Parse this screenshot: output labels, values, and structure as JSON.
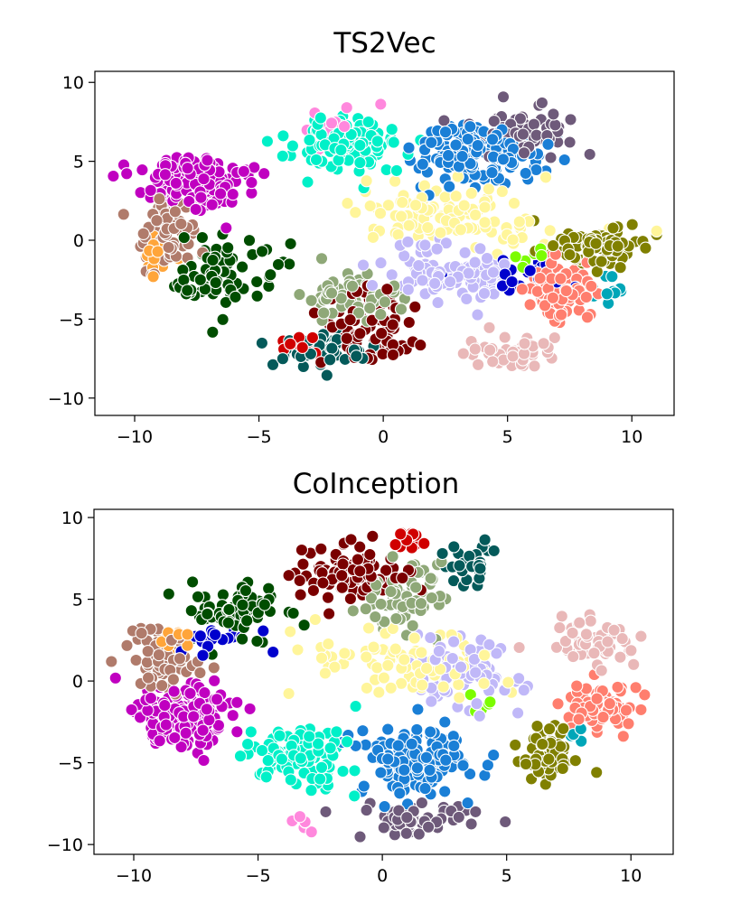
{
  "chart_data": [
    {
      "type": "scatter",
      "title": "TS2Vec",
      "xlabel": "",
      "ylabel": "",
      "xlim": [
        -11.6,
        11.7
      ],
      "ylim": [
        -11.1,
        10.7
      ],
      "xticks": [
        -10,
        -5,
        0,
        5,
        10
      ],
      "yticks": [
        -10,
        -5,
        0,
        5,
        10
      ],
      "xtick_labels": [
        "−10",
        "−5",
        "0",
        "5",
        "10"
      ],
      "ytick_labels": [
        "−10",
        "−5",
        "0",
        "5",
        "10"
      ],
      "grid": false,
      "clusters": [
        {
          "color": "#c000c0",
          "center": [
            -7.6,
            3.6
          ],
          "spread": [
            1.6,
            1.3
          ],
          "n": 170
        },
        {
          "color": "#1a7fd6",
          "center": [
            3.6,
            5.6
          ],
          "spread": [
            2.0,
            1.6
          ],
          "n": 160
        },
        {
          "color": "#00f0c8",
          "center": [
            -1.6,
            6.2
          ],
          "spread": [
            2.0,
            1.4
          ],
          "n": 110
        },
        {
          "color": "#6e5a7a",
          "center": [
            5.4,
            7.0
          ],
          "spread": [
            1.6,
            1.2
          ],
          "n": 60
        },
        {
          "color": "#fff59a",
          "center": [
            2.8,
            1.6
          ],
          "spread": [
            3.2,
            1.6
          ],
          "n": 110
        },
        {
          "color": "#808000",
          "center": [
            8.6,
            -0.4
          ],
          "spread": [
            1.3,
            1.0
          ],
          "n": 90
        },
        {
          "color": "#ff7e6e",
          "center": [
            7.2,
            -3.2
          ],
          "spread": [
            1.1,
            1.4
          ],
          "n": 100
        },
        {
          "color": "#e9b8b8",
          "center": [
            5.3,
            -7.0
          ],
          "spread": [
            1.4,
            0.9
          ],
          "n": 45
        },
        {
          "color": "#c0b8f8",
          "center": [
            2.6,
            -2.0
          ],
          "spread": [
            2.4,
            1.6
          ],
          "n": 90
        },
        {
          "color": "#7a0000",
          "center": [
            -0.6,
            -5.4
          ],
          "spread": [
            1.6,
            1.9
          ],
          "n": 70
        },
        {
          "color": "#8fa878",
          "center": [
            -1.4,
            -3.6
          ],
          "spread": [
            1.6,
            1.2
          ],
          "n": 60
        },
        {
          "color": "#045a5a",
          "center": [
            -2.4,
            -7.0
          ],
          "spread": [
            1.8,
            1.0
          ],
          "n": 45
        },
        {
          "color": "#004d00",
          "center": [
            -6.4,
            -2.0
          ],
          "spread": [
            1.9,
            1.9
          ],
          "n": 70
        },
        {
          "color": "#b07b6b",
          "center": [
            -8.6,
            0.3
          ],
          "spread": [
            1.0,
            2.0
          ],
          "n": 60
        },
        {
          "color": "#ffa53a",
          "center": [
            -9.0,
            -1.0
          ],
          "spread": [
            0.6,
            1.0
          ],
          "n": 15
        },
        {
          "color": "#0000cd",
          "center": [
            5.4,
            -2.4
          ],
          "spread": [
            1.6,
            1.0
          ],
          "n": 25
        },
        {
          "color": "#00a6b8",
          "center": [
            8.8,
            -3.0
          ],
          "spread": [
            1.0,
            1.0
          ],
          "n": 12
        },
        {
          "color": "#d00000",
          "center": [
            -3.4,
            -6.6
          ],
          "spread": [
            0.8,
            0.5
          ],
          "n": 12
        },
        {
          "color": "#ff88dd",
          "center": [
            -2.4,
            7.4
          ],
          "spread": [
            1.5,
            1.0
          ],
          "n": 10
        },
        {
          "color": "#7cfc00",
          "center": [
            6.0,
            -1.0
          ],
          "spread": [
            0.8,
            0.6
          ],
          "n": 6
        }
      ]
    },
    {
      "type": "scatter",
      "title": "CoInception",
      "xlabel": "",
      "ylabel": "",
      "xlim": [
        -11.6,
        11.7
      ],
      "ylim": [
        -10.6,
        10.5
      ],
      "xticks": [
        -10,
        -5,
        0,
        5,
        10
      ],
      "yticks": [
        -10,
        -5,
        0,
        5,
        10
      ],
      "xtick_labels": [
        "−10",
        "−5",
        "0",
        "5",
        "10"
      ],
      "ytick_labels": [
        "−10",
        "−5",
        "0",
        "5",
        "10"
      ],
      "grid": false,
      "clusters": [
        {
          "color": "#c000c0",
          "center": [
            -8.0,
            -2.2
          ],
          "spread": [
            1.5,
            1.6
          ],
          "n": 170
        },
        {
          "color": "#00f0c8",
          "center": [
            -3.0,
            -4.6
          ],
          "spread": [
            1.6,
            1.5
          ],
          "n": 110
        },
        {
          "color": "#1a7fd6",
          "center": [
            1.2,
            -5.0
          ],
          "spread": [
            1.9,
            1.6
          ],
          "n": 150
        },
        {
          "color": "#6e5a7a",
          "center": [
            1.4,
            -8.4
          ],
          "spread": [
            2.0,
            0.8
          ],
          "n": 50
        },
        {
          "color": "#fff59a",
          "center": [
            0.8,
            1.0
          ],
          "spread": [
            2.8,
            1.8
          ],
          "n": 100
        },
        {
          "color": "#7a0000",
          "center": [
            -1.2,
            6.6
          ],
          "spread": [
            1.8,
            1.4
          ],
          "n": 90
        },
        {
          "color": "#8fa878",
          "center": [
            0.8,
            5.0
          ],
          "spread": [
            1.4,
            1.6
          ],
          "n": 70
        },
        {
          "color": "#045a5a",
          "center": [
            3.8,
            7.2
          ],
          "spread": [
            0.9,
            0.9
          ],
          "n": 28
        },
        {
          "color": "#004d00",
          "center": [
            -5.6,
            4.2
          ],
          "spread": [
            1.9,
            1.6
          ],
          "n": 65
        },
        {
          "color": "#b07b6b",
          "center": [
            -8.8,
            1.4
          ],
          "spread": [
            1.2,
            1.5
          ],
          "n": 70
        },
        {
          "color": "#ffa53a",
          "center": [
            -8.6,
            2.6
          ],
          "spread": [
            0.8,
            0.6
          ],
          "n": 14
        },
        {
          "color": "#0000cd",
          "center": [
            -6.6,
            2.6
          ],
          "spread": [
            1.4,
            0.8
          ],
          "n": 18
        },
        {
          "color": "#c0b8f8",
          "center": [
            3.4,
            0.4
          ],
          "spread": [
            1.6,
            2.2
          ],
          "n": 70
        },
        {
          "color": "#808000",
          "center": [
            6.6,
            -4.4
          ],
          "spread": [
            0.9,
            1.4
          ],
          "n": 70
        },
        {
          "color": "#ff7e6e",
          "center": [
            8.6,
            -1.6
          ],
          "spread": [
            1.1,
            1.2
          ],
          "n": 90
        },
        {
          "color": "#e9b8b8",
          "center": [
            8.4,
            2.2
          ],
          "spread": [
            1.6,
            1.1
          ],
          "n": 55
        },
        {
          "color": "#d00000",
          "center": [
            1.2,
            8.6
          ],
          "spread": [
            0.7,
            0.7
          ],
          "n": 14
        },
        {
          "color": "#00a6b8",
          "center": [
            7.6,
            -3.2
          ],
          "spread": [
            0.6,
            0.6
          ],
          "n": 6
        },
        {
          "color": "#ff88dd",
          "center": [
            -3.4,
            -8.6
          ],
          "spread": [
            0.9,
            0.4
          ],
          "n": 6
        },
        {
          "color": "#7cfc00",
          "center": [
            4.2,
            -1.4
          ],
          "spread": [
            0.5,
            0.6
          ],
          "n": 6
        }
      ]
    }
  ]
}
